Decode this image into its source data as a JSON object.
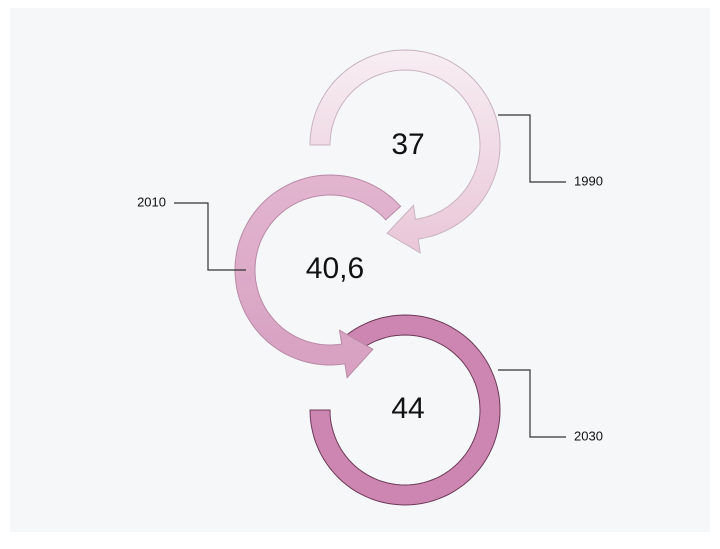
{
  "nodes": [
    {
      "value": "37",
      "label": "1990"
    },
    {
      "value": "40,6",
      "label": "2010"
    },
    {
      "value": "44",
      "label": "2030"
    }
  ]
}
